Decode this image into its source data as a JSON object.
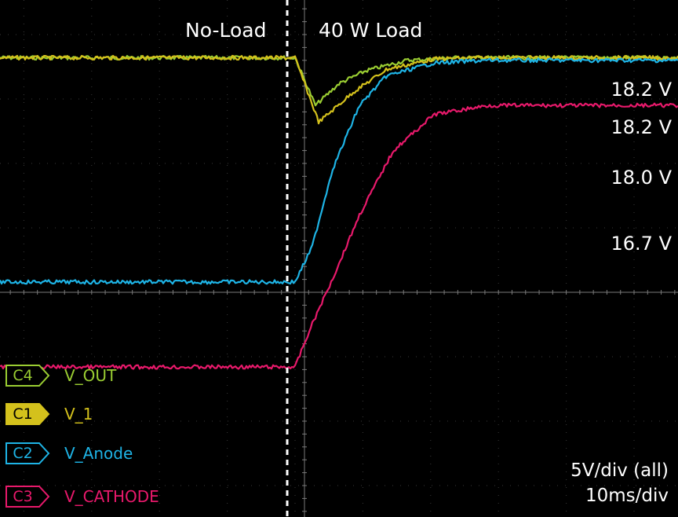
{
  "regions": {
    "left": "No-Load",
    "right": "40 W Load"
  },
  "value_labels": [
    "18.2 V",
    "18.2 V",
    "18.0 V",
    "16.7 V"
  ],
  "scale": {
    "vertical": "5V/div (all)",
    "horizontal": "10ms/div"
  },
  "legend": [
    {
      "channel": "C4",
      "name": "V_OUT",
      "color": "#9ACD32",
      "filled": false
    },
    {
      "channel": "C1",
      "name": "V_1",
      "color": "#D4C11C",
      "filled": true
    },
    {
      "channel": "C2",
      "name": "V_Anode",
      "color": "#1EB4E6",
      "filled": false
    },
    {
      "channel": "C3",
      "name": "V_CATHODE",
      "color": "#E8196B",
      "filled": false
    }
  ],
  "chart_data": {
    "type": "line",
    "title": "",
    "xlabel": "",
    "ylabel": "",
    "x_unit": "ms",
    "y_unit": "V",
    "x_divisions": 10,
    "y_divisions": 8,
    "x_range": [
      0,
      100
    ],
    "y_range": [
      -20,
      20
    ],
    "grid": true,
    "load_step_time_ms": 41.5,
    "series": [
      {
        "name": "V_OUT",
        "channel": "C4",
        "color": "#9ACD32",
        "points": [
          [
            0,
            18.2
          ],
          [
            41.5,
            18.2
          ],
          [
            44.5,
            14.5
          ],
          [
            48,
            16.2
          ],
          [
            52,
            17.2
          ],
          [
            58,
            18.0
          ],
          [
            65,
            18.2
          ],
          [
            100,
            18.2
          ]
        ]
      },
      {
        "name": "V_1",
        "channel": "C1",
        "color": "#D4C11C",
        "points": [
          [
            0,
            18.2
          ],
          [
            41.5,
            18.2
          ],
          [
            45,
            13.2
          ],
          [
            50,
            15.5
          ],
          [
            55,
            17.3
          ],
          [
            62,
            18.1
          ],
          [
            68,
            18.2
          ],
          [
            100,
            18.2
          ]
        ]
      },
      {
        "name": "V_Anode",
        "channel": "C2",
        "color": "#1EB4E6",
        "points": [
          [
            0,
            0.8
          ],
          [
            41.5,
            0.8
          ],
          [
            44,
            3.5
          ],
          [
            47,
            9.5
          ],
          [
            51,
            14.5
          ],
          [
            55,
            16.8
          ],
          [
            62,
            17.8
          ],
          [
            70,
            18.0
          ],
          [
            100,
            18.0
          ]
        ]
      },
      {
        "name": "V_CATHODE",
        "channel": "C3",
        "color": "#E8196B",
        "points": [
          [
            0,
            -5.8
          ],
          [
            41.5,
            -5.8
          ],
          [
            44,
            -2.5
          ],
          [
            47,
            1.0
          ],
          [
            51,
            6.0
          ],
          [
            56,
            11.0
          ],
          [
            62,
            13.8
          ],
          [
            70,
            14.5
          ],
          [
            100,
            14.5
          ]
        ]
      }
    ]
  }
}
